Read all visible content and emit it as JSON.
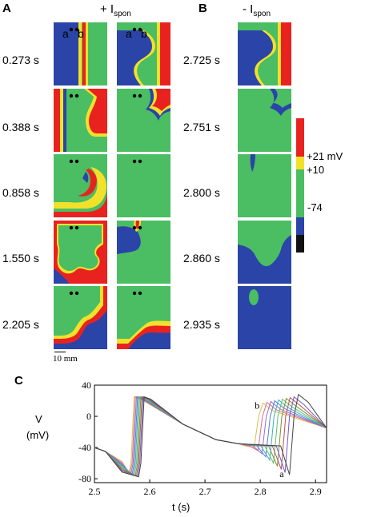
{
  "panels": {
    "a_label": "A",
    "b_label": "B",
    "c_label": "C"
  },
  "headers": {
    "a_sign": "+ I",
    "a_sub": "spon",
    "b_sign": "- I",
    "b_sub": "spon"
  },
  "left_times": [
    "0.273 s",
    "0.388 s",
    "0.858 s",
    "1.550 s",
    "2.205 s"
  ],
  "right_times": [
    "2.725 s",
    "2.751 s",
    "2.800 s",
    "2.860 s",
    "2.935 s"
  ],
  "cell_marks": {
    "a": "a",
    "b": "b"
  },
  "scale_bar": "10 mm",
  "colorbar": {
    "labels": [
      "+21 mV",
      "+10",
      "-74"
    ],
    "colors": {
      "red": "#e8231f",
      "yellow": "#f2e12a",
      "green": "#4bbd63",
      "blue": "#2b44a8",
      "black": "#111111"
    }
  },
  "chart_data": {
    "type": "line",
    "xlabel": "t (s)",
    "ylabel_line1": "V",
    "ylabel_line2": "(mV)",
    "xlim": [
      2.5,
      2.92
    ],
    "ylim": [
      -85,
      40
    ],
    "xticks": [
      "2.5",
      "2.6",
      "2.7",
      "2.8",
      "2.9"
    ],
    "yticks": [
      "40",
      "0",
      "-40",
      "-80"
    ],
    "annotations": {
      "first": "b",
      "last": "a"
    },
    "series_colors": [
      "#d8c040",
      "#e06a8a",
      "#9b6bd0",
      "#4e7fd6",
      "#3bb0c0",
      "#5fbf6a",
      "#7b8f3a",
      "#c0504d",
      "#6a5acd",
      "#444444"
    ],
    "upstroke1": [
      2.566,
      2.568,
      2.57,
      2.572,
      2.574,
      2.576,
      2.578,
      2.58,
      2.582,
      2.584
    ],
    "upstroke2": [
      2.793,
      2.8,
      2.807,
      2.814,
      2.821,
      2.828,
      2.835,
      2.842,
      2.849,
      2.857
    ],
    "peak2": [
      17,
      18,
      19,
      20,
      21,
      22,
      23,
      24,
      25,
      28
    ],
    "trough2": [
      -40,
      -44,
      -48,
      -52,
      -56,
      -60,
      -64,
      -68,
      -72,
      -75
    ]
  }
}
